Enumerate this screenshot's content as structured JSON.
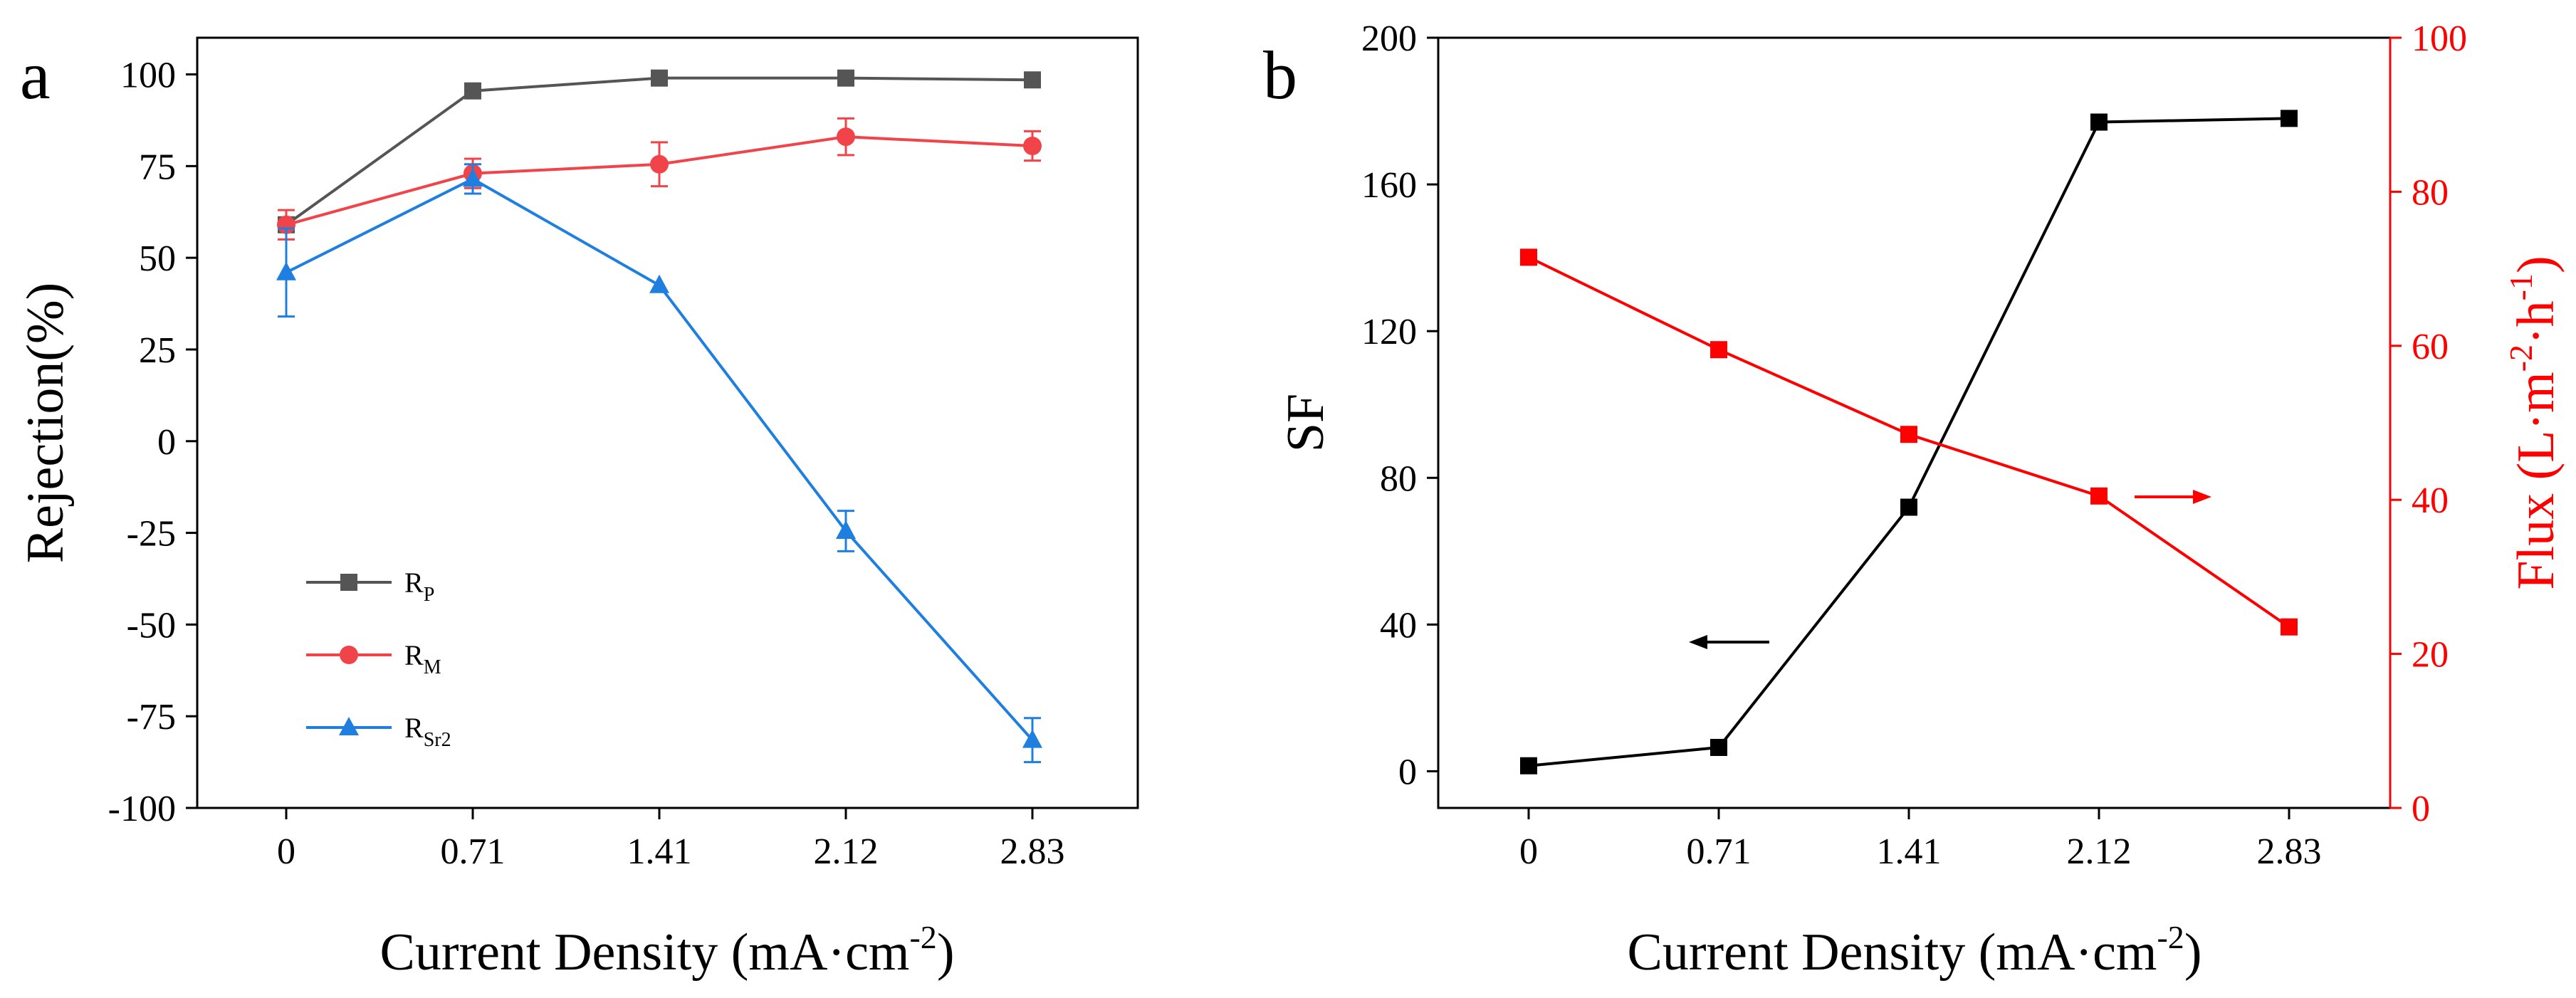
{
  "chart_data": [
    {
      "type": "line",
      "panel_label": "a",
      "xlabel": "Current Density (mA·cm-2)",
      "xlabel_main": "Current Density (mA·cm",
      "xlabel_sup": "-2",
      "xlabel_end": ")",
      "ylabel": "Rejection(%)",
      "categories": [
        "0",
        "0.71",
        "1.41",
        "2.12",
        "2.83"
      ],
      "ylim": [
        -100,
        110
      ],
      "yticks": [
        "100",
        "75",
        "50",
        "25",
        "0",
        "-25",
        "-50",
        "-75",
        "-100"
      ],
      "ytick_values": [
        100,
        75,
        50,
        25,
        0,
        -25,
        -50,
        -75,
        -100
      ],
      "legend_position": "bottom-left",
      "series": [
        {
          "name": "RP",
          "label_main": "R",
          "label_sub": "P",
          "marker": "square",
          "color": "#555555",
          "values": [
            59,
            95.5,
            99,
            99,
            98.5
          ],
          "errors": [
            0,
            0,
            0,
            0,
            0
          ]
        },
        {
          "name": "RM",
          "label_main": "R",
          "label_sub": "M",
          "marker": "circle",
          "color": "#f0444a",
          "values": [
            59,
            73,
            75.5,
            83,
            80.5
          ],
          "errors": [
            4,
            4,
            6,
            5,
            4
          ]
        },
        {
          "name": "RSr2",
          "label_main": "R",
          "label_sub": "Sr2",
          "marker": "triangle",
          "color": "#1f7fe0",
          "values": [
            46,
            71.5,
            42.5,
            -24.5,
            -81.5
          ],
          "errors": [
            12,
            4,
            0,
            5.5,
            6
          ]
        }
      ]
    },
    {
      "type": "line",
      "panel_label": "b",
      "xlabel": "Current Density (mA·cm-2)",
      "xlabel_main": "Current Density (mA·cm",
      "xlabel_sup": "-2",
      "xlabel_end": ")",
      "categories": [
        "0",
        "0.71",
        "1.41",
        "2.12",
        "2.83"
      ],
      "left_axis": {
        "ylabel": "SF",
        "ylim": [
          -10,
          200
        ],
        "yticks": [
          "200",
          "160",
          "120",
          "80",
          "40",
          "0"
        ],
        "ytick_values": [
          200,
          160,
          120,
          80,
          40,
          0
        ]
      },
      "right_axis": {
        "ylabel": "Flux (L·m-2·h-1)",
        "ylabel_parts": [
          "Flux (L·m",
          "-2",
          "·h",
          "-1",
          ")"
        ],
        "ylim": [
          0,
          100
        ],
        "yticks": [
          "100",
          "80",
          "60",
          "40",
          "20",
          "0"
        ],
        "ytick_values": [
          100,
          80,
          60,
          40,
          20,
          0
        ],
        "color": "#ff0000"
      },
      "series": [
        {
          "name": "SF",
          "axis": "left",
          "marker": "square",
          "color": "#000000",
          "values": [
            1.5,
            6.5,
            72,
            177,
            178
          ]
        },
        {
          "name": "Flux",
          "axis": "right",
          "marker": "square",
          "color": "#ff0000",
          "values": [
            71.5,
            59.5,
            48.5,
            40.5,
            23.5
          ]
        }
      ],
      "annotations": [
        {
          "type": "arrow",
          "direction": "left",
          "color": "#000000",
          "points_to": "left axis (SF)"
        },
        {
          "type": "arrow",
          "direction": "right",
          "color": "#ff0000",
          "points_to": "right axis (Flux)"
        }
      ]
    }
  ]
}
